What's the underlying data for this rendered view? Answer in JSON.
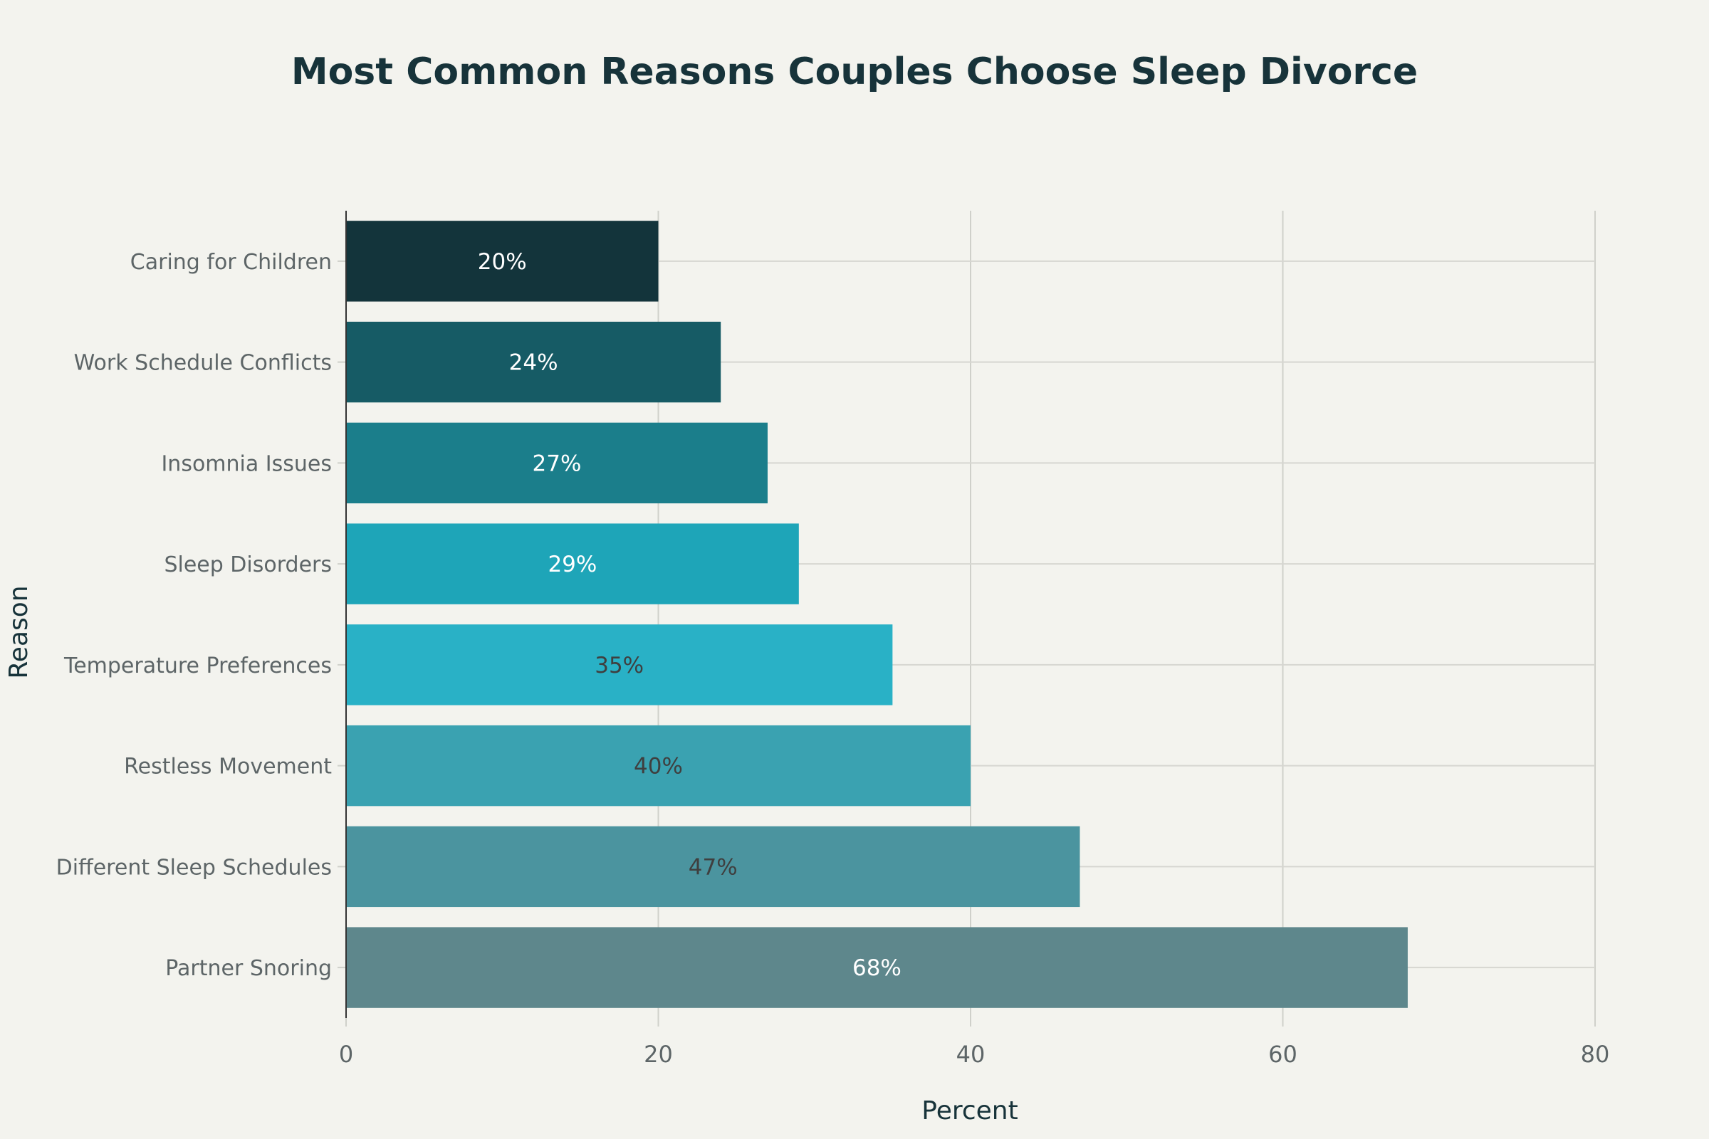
{
  "chart_data": {
    "type": "bar",
    "orientation": "horizontal",
    "title": "Most Common Reasons Couples Choose Sleep Divorce",
    "xlabel": "Percent",
    "ylabel": "Reason",
    "xlim": [
      0,
      80
    ],
    "xticks": [
      0,
      20,
      40,
      60,
      80
    ],
    "grid": true,
    "categories": [
      "Caring for Children",
      "Work Schedule Conflicts",
      "Insomnia Issues",
      "Sleep Disorders",
      "Temperature Preferences",
      "Restless Movement",
      "Different Sleep Schedules",
      "Partner Snoring"
    ],
    "values": [
      20,
      24,
      27,
      29,
      35,
      40,
      47,
      68
    ],
    "data_labels": [
      "20%",
      "24%",
      "27%",
      "29%",
      "35%",
      "40%",
      "47%",
      "68%"
    ],
    "colors": [
      "#13343b",
      "#165b65",
      "#1b7e8b",
      "#1ea5b8",
      "#29b1c6",
      "#3aa2b1",
      "#4b949f",
      "#5e878c"
    ],
    "label_colors": [
      "#ffffff",
      "#ffffff",
      "#ffffff",
      "#ffffff",
      "#3f3f3f",
      "#3f3f3f",
      "#3f3f3f",
      "#ffffff"
    ]
  }
}
